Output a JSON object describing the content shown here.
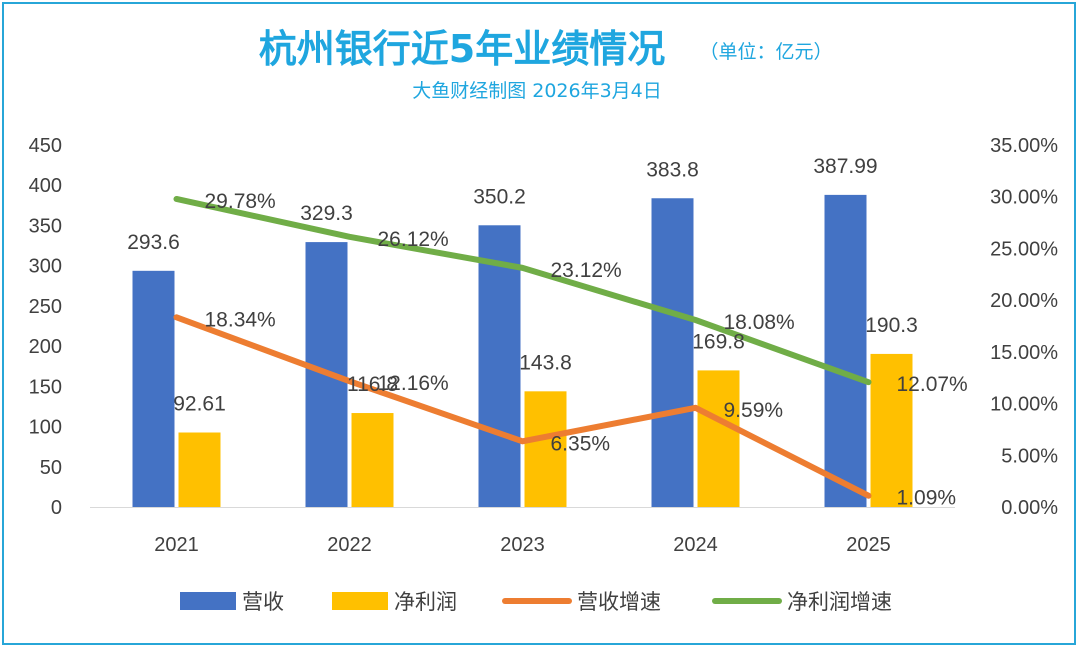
{
  "header": {
    "title": "杭州银行近5年业绩情况",
    "unit": "（单位：亿元）",
    "subtitle": "大鱼财经制图 2026年3月4日"
  },
  "colors": {
    "title": "#1fa6df",
    "border": "#27a6d8",
    "revenue": "#4472c4",
    "net_profit": "#ffc000",
    "revenue_growth": "#ed7d31",
    "net_profit_growth": "#70ad47"
  },
  "chart_data": {
    "type": "bar",
    "categories": [
      "2021",
      "2022",
      "2023",
      "2024",
      "2025"
    ],
    "series": [
      {
        "name": "营收",
        "type": "bar",
        "axis": "left",
        "values": [
          293.6,
          329.3,
          350.2,
          383.8,
          387.99
        ],
        "labels": [
          "293.6",
          "329.3",
          "350.2",
          "383.8",
          "387.99"
        ]
      },
      {
        "name": "净利润",
        "type": "bar",
        "axis": "left",
        "values": [
          92.61,
          116.8,
          143.8,
          169.8,
          190.3
        ],
        "labels": [
          "92.61",
          "116.8",
          "143.8",
          "169.8",
          "190.3"
        ]
      },
      {
        "name": "营收增速",
        "type": "line",
        "axis": "right",
        "values": [
          18.34,
          12.16,
          6.35,
          9.59,
          1.09
        ],
        "labels": [
          "18.34%",
          "12.16%",
          "6.35%",
          "9.59%",
          "1.09%"
        ]
      },
      {
        "name": "净利润增速",
        "type": "line",
        "axis": "right",
        "values": [
          29.78,
          26.12,
          23.12,
          18.08,
          12.07
        ],
        "labels": [
          "29.78%",
          "26.12%",
          "23.12%",
          "18.08%",
          "12.07%"
        ]
      }
    ],
    "y_left": {
      "min": 0,
      "max": 450,
      "ticks": [
        "0",
        "50",
        "100",
        "150",
        "200",
        "250",
        "300",
        "350",
        "400",
        "450"
      ]
    },
    "y_right": {
      "min": 0,
      "max": 35,
      "ticks": [
        "0.00%",
        "5.00%",
        "10.00%",
        "15.00%",
        "20.00%",
        "25.00%",
        "30.00%",
        "35.00%"
      ]
    },
    "grid": false,
    "legend": "bottom"
  }
}
